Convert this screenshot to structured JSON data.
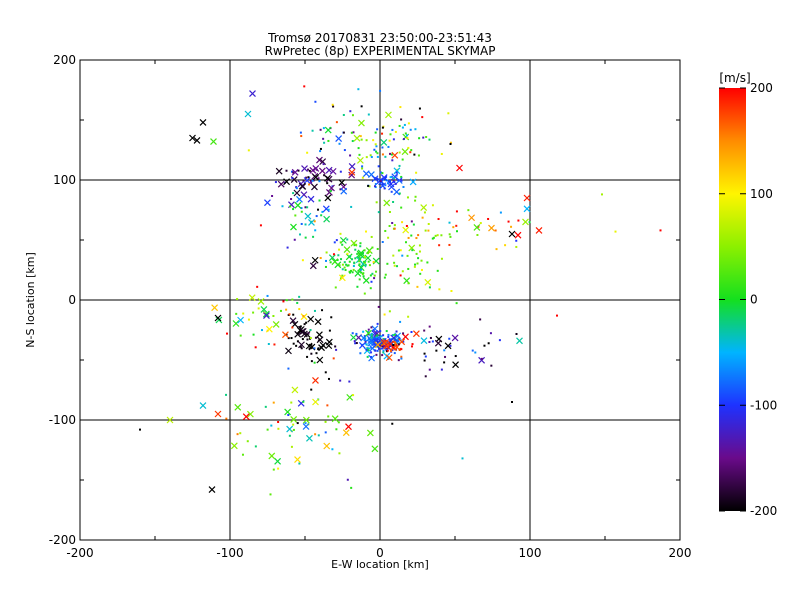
{
  "chart_data": {
    "type": "scatter",
    "title": "Tromsø 20170831 23:50:00-23:51:43",
    "subtitle": "RwPretec (8p) EXPERIMENTAL SKYMAP",
    "xlabel": "E-W location [km]",
    "ylabel": "N-S location [km]",
    "xlim": [
      -200,
      200
    ],
    "ylim": [
      -200,
      200
    ],
    "x_ticks": [
      "-200",
      "-100",
      "0",
      "100",
      "200"
    ],
    "y_ticks": [
      "-200",
      "-100",
      "0",
      "100",
      "200"
    ],
    "grid": true,
    "colorbar": {
      "label": "[m/s]",
      "range": [
        -200,
        200
      ],
      "ticks": [
        "200",
        "100",
        "0",
        "-100",
        "-200"
      ]
    },
    "marker_legend": "cross markers and dot markers, colored by line-of-sight velocity [m/s]",
    "clusters": [
      {
        "x": 0,
        "y": -35,
        "sx": 8,
        "sy": 6,
        "n": 140,
        "v": -80,
        "vs": 40,
        "frac_cross": 0.3
      },
      {
        "x": 12,
        "y": -38,
        "sx": 6,
        "sy": 4,
        "n": 30,
        "v": 180,
        "vs": 20,
        "frac_cross": 0.4
      },
      {
        "x": -15,
        "y": 32,
        "sx": 8,
        "sy": 8,
        "n": 90,
        "v": 10,
        "vs": 20,
        "frac_cross": 0.25
      },
      {
        "x": 15,
        "y": 50,
        "sx": 18,
        "sy": 25,
        "n": 90,
        "v": 40,
        "vs": 50,
        "frac_cross": 0.05
      },
      {
        "x": -45,
        "y": 100,
        "sx": 10,
        "sy": 8,
        "n": 55,
        "v": -160,
        "vs": 30,
        "frac_cross": 0.5
      },
      {
        "x": 5,
        "y": 98,
        "sx": 8,
        "sy": 4,
        "n": 45,
        "v": -90,
        "vs": 20,
        "frac_cross": 0.3
      },
      {
        "x": -15,
        "y": 130,
        "sx": 20,
        "sy": 20,
        "n": 80,
        "v": -20,
        "vs": 90,
        "frac_cross": 0.2
      },
      {
        "x": -50,
        "y": -25,
        "sx": 10,
        "sy": 10,
        "n": 35,
        "v": -200,
        "vs": 10,
        "frac_cross": 0.4
      },
      {
        "x": -45,
        "y": -42,
        "sx": 8,
        "sy": 6,
        "n": 20,
        "v": -200,
        "vs": 10,
        "frac_cross": 0.4
      },
      {
        "x": -75,
        "y": -15,
        "sx": 18,
        "sy": 12,
        "n": 40,
        "v": 70,
        "vs": 80,
        "frac_cross": 0.3
      },
      {
        "x": -60,
        "y": -105,
        "sx": 22,
        "sy": 18,
        "n": 50,
        "v": 60,
        "vs": 90,
        "frac_cross": 0.45
      },
      {
        "x": -50,
        "y": 75,
        "sx": 12,
        "sy": 10,
        "n": 30,
        "v": -30,
        "vs": 40,
        "frac_cross": 0.2
      },
      {
        "x": 45,
        "y": -40,
        "sx": 22,
        "sy": 10,
        "n": 40,
        "v": -150,
        "vs": 60,
        "frac_cross": 0.2
      },
      {
        "x": 60,
        "y": 65,
        "sx": 25,
        "sy": 12,
        "n": 30,
        "v": 100,
        "vs": 100,
        "frac_cross": 0.2
      },
      {
        "x": -30,
        "y": 0,
        "sx": 30,
        "sy": 80,
        "n": 60,
        "v": 0,
        "vs": 120,
        "frac_cross": 0.1
      },
      {
        "x": 20,
        "y": 135,
        "sx": 15,
        "sy": 12,
        "n": 35,
        "v": 0,
        "vs": 120,
        "frac_cross": 0.1
      }
    ],
    "outliers": [
      {
        "x": -118,
        "y": 148,
        "v": -200,
        "m": "x"
      },
      {
        "x": -125,
        "y": 135,
        "v": -200,
        "m": "x"
      },
      {
        "x": -122,
        "y": 133,
        "v": -200,
        "m": "x"
      },
      {
        "x": -111,
        "y": 132,
        "v": 20,
        "m": "x"
      },
      {
        "x": -112,
        "y": -158,
        "v": -200,
        "m": "x"
      },
      {
        "x": -160,
        "y": -108,
        "v": -200,
        "m": "dot"
      },
      {
        "x": -140,
        "y": -100,
        "v": 70,
        "m": "x"
      },
      {
        "x": -118,
        "y": -88,
        "v": -40,
        "m": "x"
      },
      {
        "x": -108,
        "y": -95,
        "v": 180,
        "m": "x"
      },
      {
        "x": -108,
        "y": -15,
        "v": -200,
        "m": "x"
      },
      {
        "x": -102,
        "y": -28,
        "v": 200,
        "m": "dot"
      },
      {
        "x": 98,
        "y": 85,
        "v": 190,
        "m": "x"
      },
      {
        "x": 106,
        "y": 58,
        "v": 190,
        "m": "x"
      },
      {
        "x": 98,
        "y": 76,
        "v": -50,
        "m": "x"
      },
      {
        "x": 88,
        "y": 55,
        "v": -200,
        "m": "x"
      },
      {
        "x": 92,
        "y": 54,
        "v": 200,
        "m": "x"
      },
      {
        "x": 118,
        "y": -13,
        "v": 200,
        "m": "dot"
      },
      {
        "x": 148,
        "y": 88,
        "v": 60,
        "m": "dot"
      },
      {
        "x": 157,
        "y": 57,
        "v": 90,
        "m": "dot"
      },
      {
        "x": 187,
        "y": 58,
        "v": 200,
        "m": "dot"
      },
      {
        "x": 93,
        "y": -34,
        "v": -30,
        "m": "x"
      },
      {
        "x": 88,
        "y": -85,
        "v": -200,
        "m": "dot"
      },
      {
        "x": 55,
        "y": -132,
        "v": -40,
        "m": "dot"
      },
      {
        "x": 53,
        "y": 110,
        "v": 200,
        "m": "x"
      },
      {
        "x": 47,
        "y": 130,
        "v": -200,
        "m": "dot"
      },
      {
        "x": -88,
        "y": 155,
        "v": -40,
        "m": "x"
      },
      {
        "x": -85,
        "y": 172,
        "v": -120,
        "m": "x"
      },
      {
        "x": -73,
        "y": -162,
        "v": 30,
        "m": "dot"
      },
      {
        "x": -55,
        "y": -133,
        "v": 110,
        "m": "x"
      },
      {
        "x": -43,
        "y": -85,
        "v": 90,
        "m": "x"
      }
    ]
  }
}
